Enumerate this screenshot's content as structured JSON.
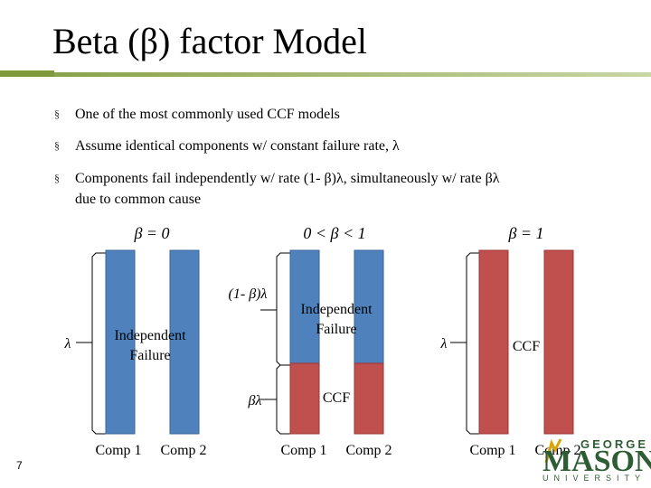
{
  "title": "Beta (β) factor Model",
  "bullets": [
    {
      "line1": "One of the most commonly used CCF models",
      "line2": ""
    },
    {
      "line1": "Assume identical components w/ constant failure rate, λ",
      "line2": ""
    },
    {
      "line1": "Components fail independently w/ rate (1- β)λ, simultaneously w/ rate βλ",
      "line2": "due to common cause"
    }
  ],
  "bullet_mark": "§",
  "colors": {
    "blue": "#4f81bd",
    "red": "#c0504d",
    "accent": "#7f9a3c",
    "logo": "#2e5c33"
  },
  "panels": [
    {
      "header": "β = 0",
      "blue_fraction": 1,
      "lambda_label": "λ",
      "inside_label": [
        "Independent",
        "Failure"
      ],
      "comp1": "Comp 1",
      "comp2": "Comp 2"
    },
    {
      "header": "0 < β < 1",
      "blue_fraction": 0.73,
      "top_brace_label": "(1- β)λ",
      "bottom_brace_label": "βλ",
      "inside_top_label": [
        "Independent",
        "Failure"
      ],
      "inside_bottom_label": "CCF",
      "comp1": "Comp 1",
      "comp2": "Comp 2"
    },
    {
      "header": "β = 1",
      "blue_fraction": 0,
      "lambda_label": "λ",
      "inside_label": [
        "CCF"
      ],
      "comp1": "Comp 1",
      "comp2": "Comp 2"
    }
  ],
  "slide_number": "7",
  "logo": {
    "line1": "GEORGE",
    "line2": "MASON",
    "line3": "UNIVERSITY"
  }
}
